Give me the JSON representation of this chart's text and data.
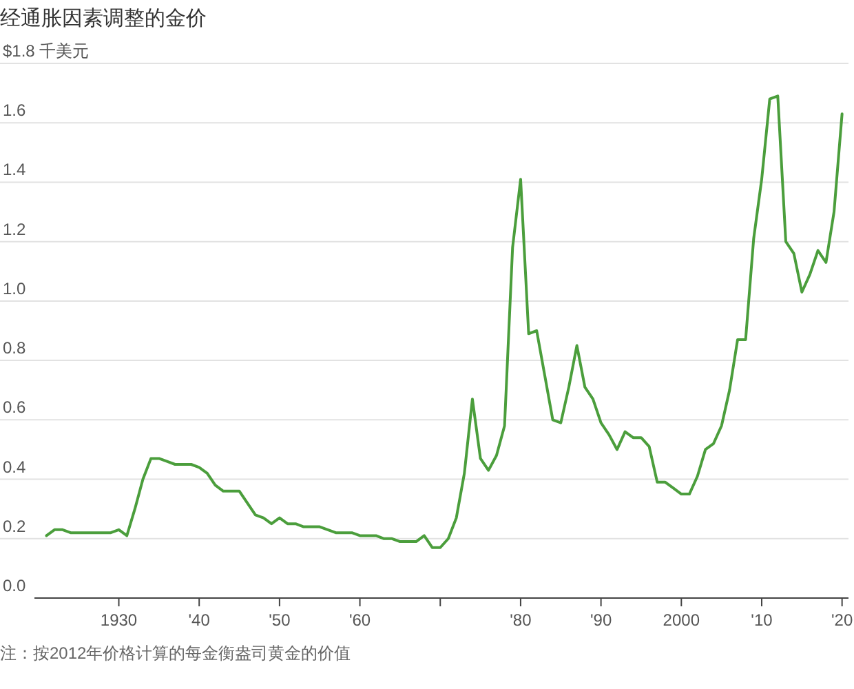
{
  "chart_data": {
    "type": "line",
    "title": "经通胀因素调整的金价",
    "annotations": [
      "注：按2012年价格计算的每金衡盎司黄金的价值"
    ],
    "x": [
      1921,
      1922,
      1923,
      1924,
      1925,
      1926,
      1927,
      1928,
      1929,
      1930,
      1931,
      1932,
      1933,
      1934,
      1935,
      1936,
      1937,
      1938,
      1939,
      1940,
      1941,
      1942,
      1943,
      1944,
      1945,
      1946,
      1947,
      1948,
      1949,
      1950,
      1951,
      1952,
      1953,
      1954,
      1955,
      1956,
      1957,
      1958,
      1959,
      1960,
      1961,
      1962,
      1963,
      1964,
      1965,
      1966,
      1967,
      1968,
      1969,
      1970,
      1971,
      1972,
      1973,
      1974,
      1975,
      1976,
      1977,
      1978,
      1979,
      1980,
      1981,
      1982,
      1983,
      1984,
      1985,
      1986,
      1987,
      1988,
      1989,
      1990,
      1991,
      1992,
      1993,
      1994,
      1995,
      1996,
      1997,
      1998,
      1999,
      2000,
      2001,
      2002,
      2003,
      2004,
      2005,
      2006,
      2007,
      2008,
      2009,
      2010,
      2011,
      2012,
      2013,
      2014,
      2015,
      2016,
      2017,
      2018,
      2019,
      2020
    ],
    "series": [
      {
        "color": "#4b9e3c",
        "values": [
          0.21,
          0.23,
          0.23,
          0.22,
          0.22,
          0.22,
          0.22,
          0.22,
          0.22,
          0.23,
          0.21,
          0.3,
          0.4,
          0.47,
          0.47,
          0.46,
          0.45,
          0.45,
          0.45,
          0.44,
          0.42,
          0.38,
          0.36,
          0.36,
          0.36,
          0.32,
          0.28,
          0.27,
          0.25,
          0.27,
          0.25,
          0.25,
          0.24,
          0.24,
          0.24,
          0.23,
          0.22,
          0.22,
          0.22,
          0.21,
          0.21,
          0.21,
          0.2,
          0.2,
          0.19,
          0.19,
          0.19,
          0.21,
          0.17,
          0.17,
          0.2,
          0.27,
          0.42,
          0.67,
          0.47,
          0.43,
          0.48,
          0.58,
          1.18,
          1.41,
          0.89,
          0.9,
          0.75,
          0.6,
          0.59,
          0.71,
          0.85,
          0.71,
          0.67,
          0.59,
          0.55,
          0.5,
          0.56,
          0.54,
          0.54,
          0.51,
          0.39,
          0.39,
          0.37,
          0.35,
          0.35,
          0.41,
          0.5,
          0.52,
          0.58,
          0.7,
          0.87,
          0.87,
          1.21,
          1.41,
          1.68,
          1.69,
          1.2,
          1.16,
          1.03,
          1.09,
          1.17,
          1.13,
          1.3,
          1.63
        ]
      }
    ],
    "xlim": [
      1919.5,
      2020.8
    ],
    "xticks": [
      {
        "value": 1930,
        "label": "1930"
      },
      {
        "value": 1940,
        "label": "'40"
      },
      {
        "value": 1950,
        "label": "'50"
      },
      {
        "value": 1960,
        "label": "'60"
      },
      {
        "value": 1970,
        "label": null
      },
      {
        "value": 1980,
        "label": "'80"
      },
      {
        "value": 1990,
        "label": "'90"
      },
      {
        "value": 2000,
        "label": "2000"
      },
      {
        "value": 2010,
        "label": "'10"
      },
      {
        "value": 2020,
        "label": "'20"
      }
    ],
    "ylim": [
      0,
      1.8
    ],
    "yticks": [
      {
        "value": 0,
        "label": "0.0"
      },
      {
        "value": 0.2,
        "label": "0.2"
      },
      {
        "value": 0.4,
        "label": "0.4"
      },
      {
        "value": 0.6,
        "label": "0.6"
      },
      {
        "value": 0.8,
        "label": "0.8"
      },
      {
        "value": 1.0,
        "label": "1.0"
      },
      {
        "value": 1.2,
        "label": "1.2"
      },
      {
        "value": 1.4,
        "label": "1.4"
      },
      {
        "value": 1.6,
        "label": "1.6"
      },
      {
        "value": 1.8,
        "label": "$1.8 千美元"
      }
    ],
    "grid": "y",
    "marker": "none",
    "line_style": "solid"
  }
}
